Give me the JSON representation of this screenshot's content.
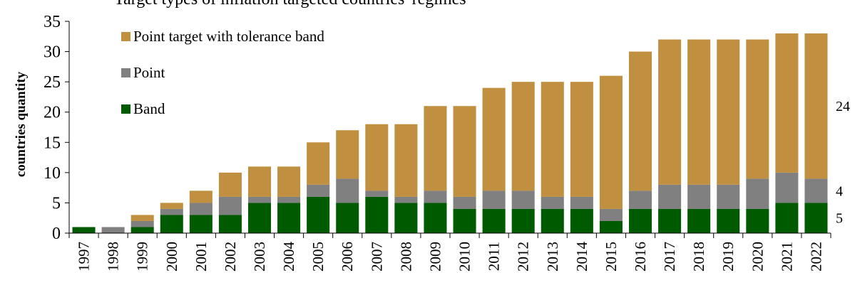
{
  "chart_data": {
    "type": "bar",
    "stacked": true,
    "title": "Target types of inflation targeted countries' regimes",
    "xlabel": "",
    "ylabel": "countries quantity",
    "ylim": [
      0,
      35
    ],
    "yticks": [
      "0",
      "5",
      "10",
      "15",
      "20",
      "25",
      "30",
      "35"
    ],
    "grid": false,
    "legend_position": "top-left",
    "categories": [
      "1997",
      "1998",
      "1999",
      "2000",
      "2001",
      "2002",
      "2003",
      "2004",
      "2005",
      "2006",
      "2007",
      "2008",
      "2009",
      "2010",
      "2011",
      "2012",
      "2013",
      "2014",
      "2015",
      "2016",
      "2017",
      "2018",
      "2019",
      "2020",
      "2021",
      "2022"
    ],
    "series": [
      {
        "name": "Band",
        "color": "#005a00",
        "values": [
          1,
          0,
          1,
          3,
          3,
          3,
          5,
          5,
          6,
          5,
          6,
          5,
          5,
          4,
          4,
          4,
          4,
          4,
          2,
          4,
          4,
          4,
          4,
          4,
          5,
          5
        ]
      },
      {
        "name": "Point",
        "color": "#808080",
        "values": [
          0,
          1,
          1,
          1,
          2,
          3,
          1,
          1,
          2,
          4,
          1,
          1,
          2,
          2,
          3,
          3,
          2,
          2,
          2,
          3,
          4,
          4,
          4,
          5,
          5,
          4
        ]
      },
      {
        "name": "Point target with tolerance band",
        "color": "#c09040",
        "values": [
          0,
          0,
          1,
          1,
          2,
          4,
          5,
          5,
          7,
          8,
          11,
          12,
          14,
          15,
          17,
          18,
          19,
          19,
          22,
          23,
          24,
          24,
          24,
          23,
          23,
          24
        ]
      }
    ],
    "legend_order": [
      "Point target with tolerance band",
      "Point",
      "Band"
    ],
    "annotations": [
      {
        "text": "24",
        "series": "Point target with tolerance band"
      },
      {
        "text": "4",
        "series": "Point"
      },
      {
        "text": "5",
        "series": "Band"
      }
    ]
  }
}
